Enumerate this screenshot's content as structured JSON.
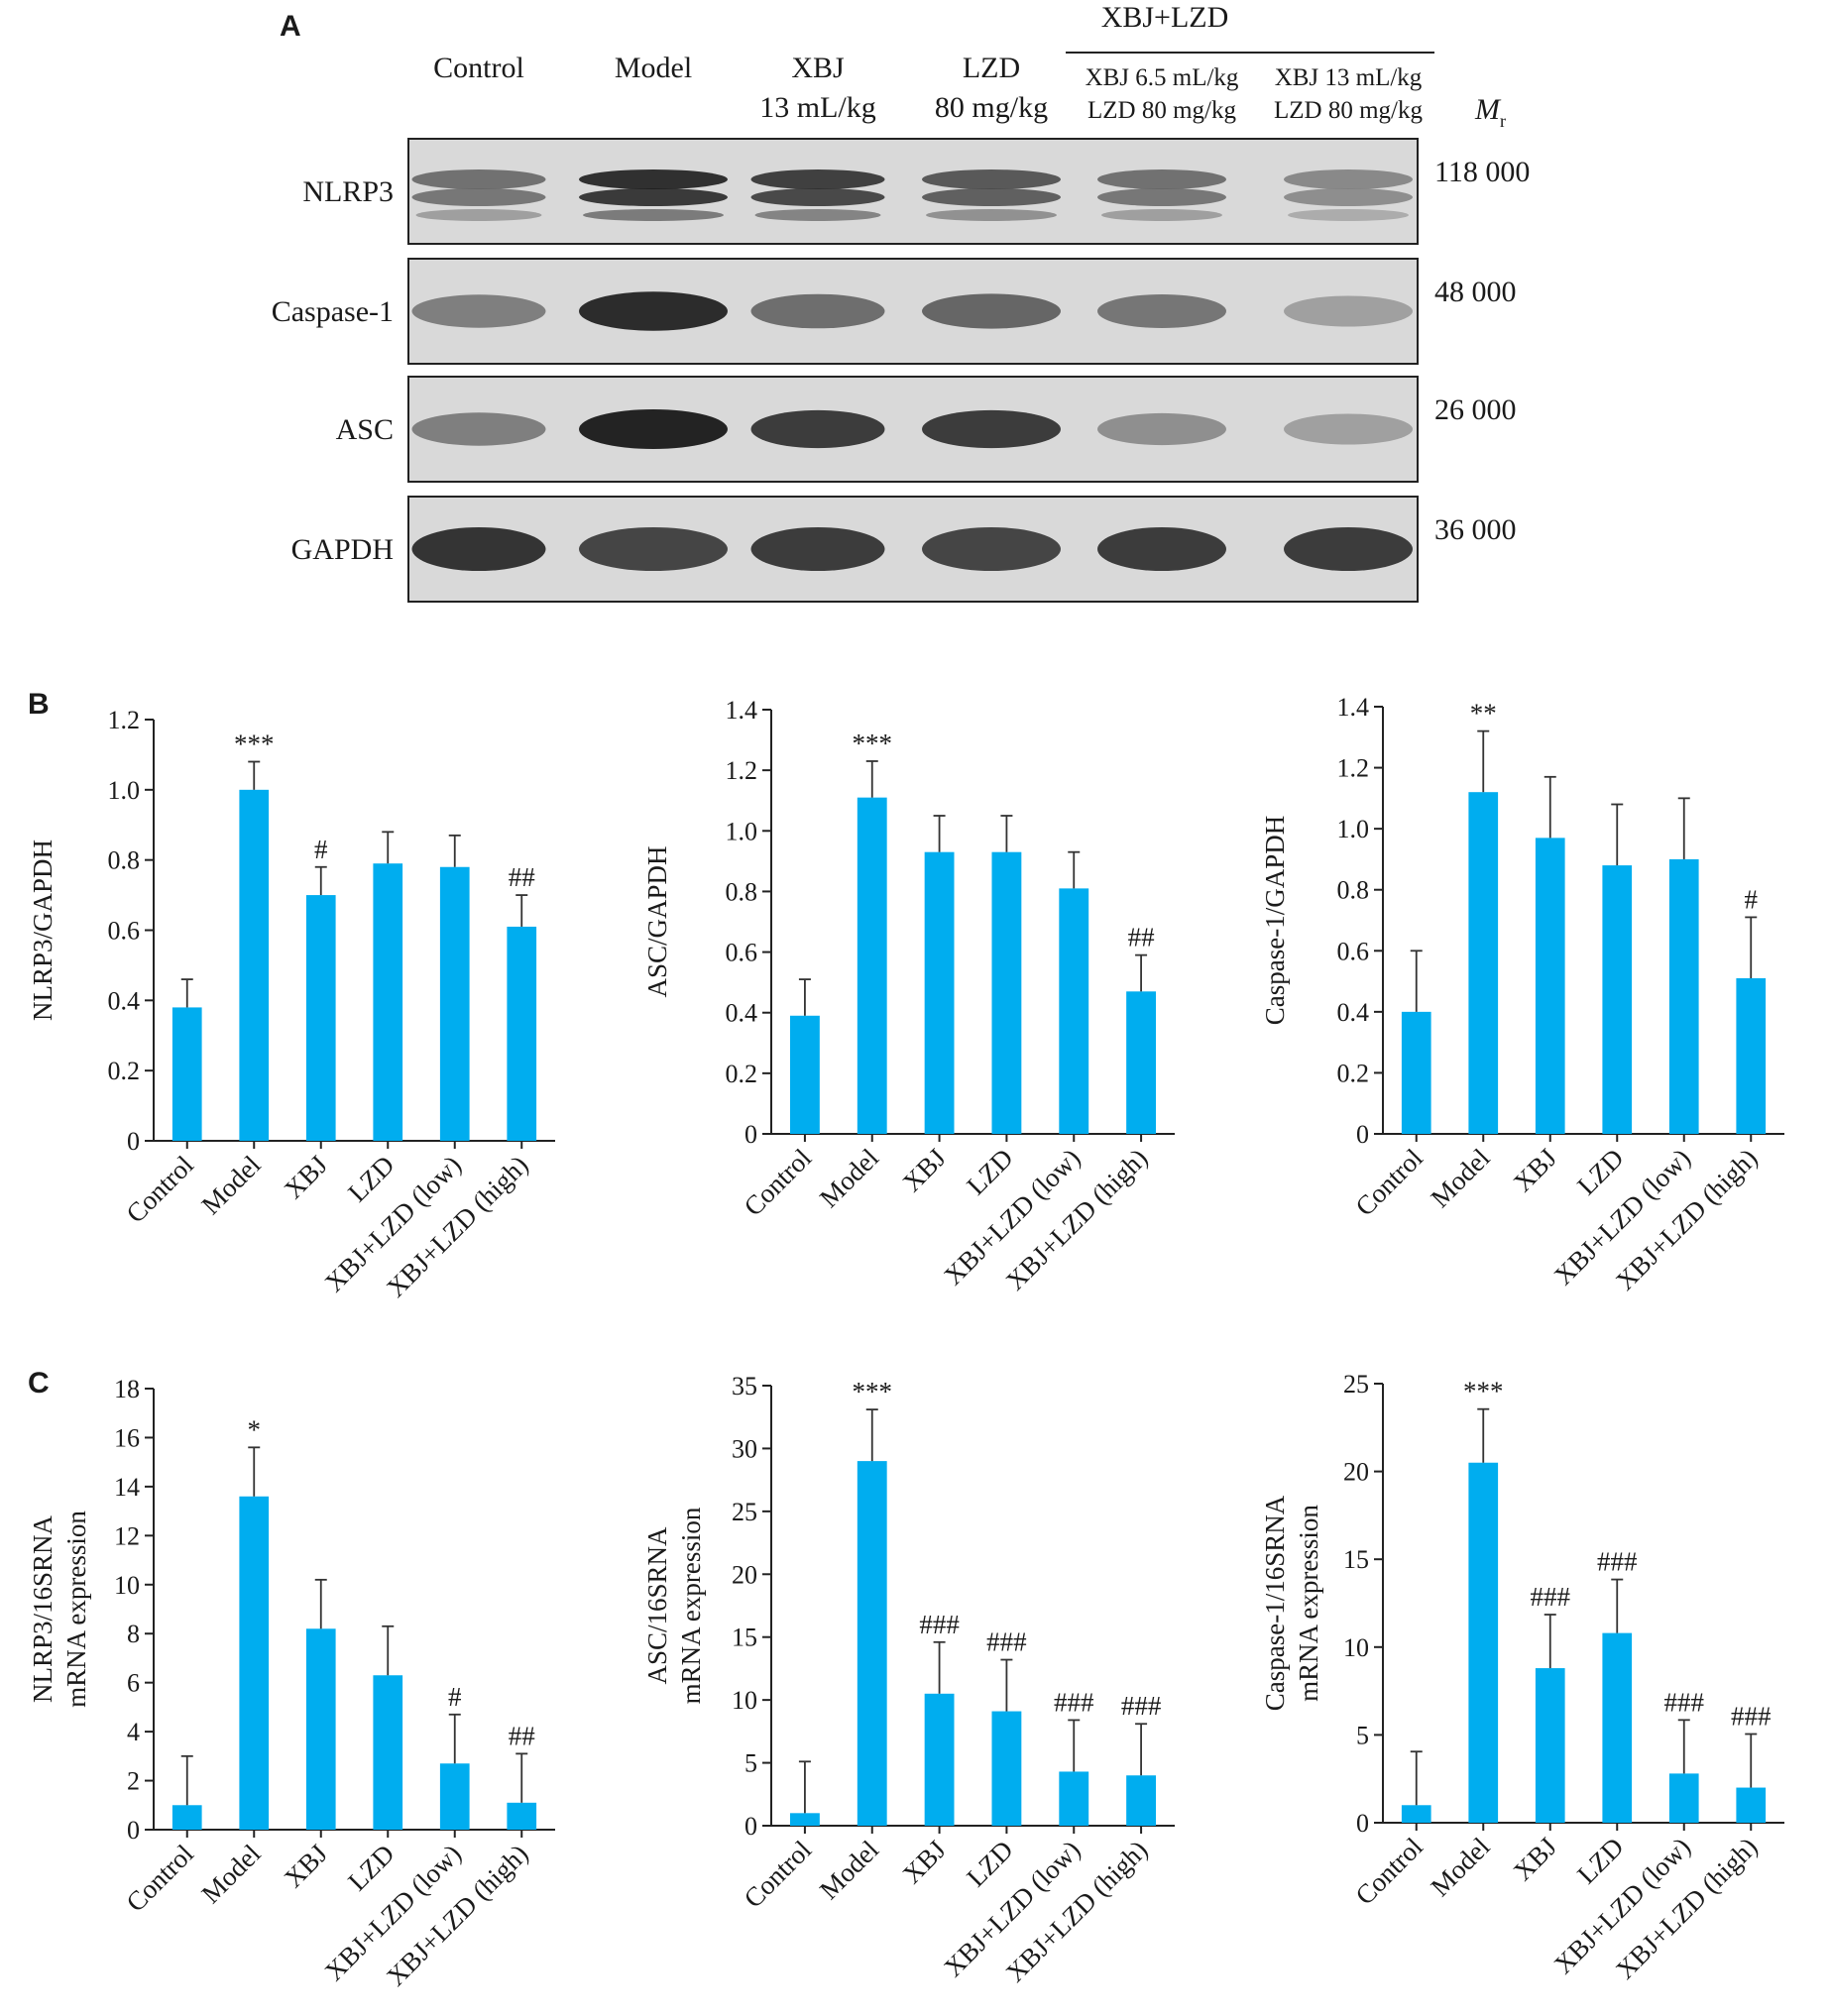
{
  "panel_A": {
    "letter": "A",
    "group_header": "XBJ+LZD",
    "mr_symbol": "M",
    "mr_sub": "r",
    "columns": [
      {
        "line1": "Control",
        "line2": ""
      },
      {
        "line1": "Model",
        "line2": ""
      },
      {
        "line1": "XBJ",
        "line2": "13 mL/kg"
      },
      {
        "line1": "LZD",
        "line2": "80 mg/kg"
      },
      {
        "line1": "XBJ 6.5 mL/kg",
        "line2": "LZD 80 mg/kg"
      },
      {
        "line1": "XBJ 13 mL/kg",
        "line2": "LZD 80 mg/kg"
      }
    ],
    "blots": [
      {
        "protein": "NLRP3",
        "mr": "118 000",
        "intensity": [
          0.55,
          0.95,
          0.85,
          0.7,
          0.55,
          0.4
        ]
      },
      {
        "protein": "Caspase-1",
        "mr": "48 000",
        "intensity": [
          0.45,
          0.95,
          0.55,
          0.6,
          0.5,
          0.25
        ]
      },
      {
        "protein": "ASC",
        "mr": "26 000",
        "intensity": [
          0.45,
          1.0,
          0.85,
          0.85,
          0.35,
          0.25
        ]
      },
      {
        "protein": "GAPDH",
        "mr": "36 000",
        "intensity": [
          0.9,
          0.8,
          0.85,
          0.8,
          0.85,
          0.85
        ]
      }
    ]
  },
  "panel_B": {
    "letter": "B"
  },
  "panel_C": {
    "letter": "C"
  },
  "chart_data": [
    {
      "type": "bar",
      "panel": "B",
      "categories": [
        "Control",
        "Model",
        "XBJ",
        "LZD",
        "XBJ+LZD (low)",
        "XBJ+LZD (high)"
      ],
      "values": [
        0.38,
        1.0,
        0.7,
        0.79,
        0.78,
        0.61
      ],
      "errors": [
        0.08,
        0.08,
        0.08,
        0.09,
        0.09,
        0.09
      ],
      "annotations": [
        "",
        "***",
        "#",
        "",
        "",
        "##"
      ],
      "ylabel_lines": [
        "NLRP3/GAPDH"
      ],
      "ylim": [
        0,
        1.2
      ],
      "yticks": [
        0,
        0.2,
        0.4,
        0.6,
        0.8,
        1.0,
        1.2
      ],
      "ytick_labels": [
        "0",
        "0.2",
        "0.4",
        "0.6",
        "0.8",
        "1.0",
        "1.2"
      ],
      "color": "#00adef"
    },
    {
      "type": "bar",
      "panel": "B",
      "categories": [
        "Control",
        "Model",
        "XBJ",
        "LZD",
        "XBJ+LZD (low)",
        "XBJ+LZD (high)"
      ],
      "values": [
        0.39,
        1.11,
        0.93,
        0.93,
        0.81,
        0.47
      ],
      "errors": [
        0.12,
        0.12,
        0.12,
        0.12,
        0.12,
        0.12
      ],
      "annotations": [
        "",
        "***",
        "",
        "",
        "",
        "##"
      ],
      "ylabel_lines": [
        "ASC/GAPDH"
      ],
      "ylim": [
        0,
        1.4
      ],
      "yticks": [
        0,
        0.2,
        0.4,
        0.6,
        0.8,
        1.0,
        1.2,
        1.4
      ],
      "ytick_labels": [
        "0",
        "0.2",
        "0.4",
        "0.6",
        "0.8",
        "1.0",
        "1.2",
        "1.4"
      ],
      "color": "#00adef"
    },
    {
      "type": "bar",
      "panel": "B",
      "categories": [
        "Control",
        "Model",
        "XBJ",
        "LZD",
        "XBJ+LZD (low)",
        "XBJ+LZD (high)"
      ],
      "values": [
        0.4,
        1.12,
        0.97,
        0.88,
        0.9,
        0.51
      ],
      "errors": [
        0.2,
        0.2,
        0.2,
        0.2,
        0.2,
        0.2
      ],
      "annotations": [
        "",
        "**",
        "",
        "",
        "",
        "#"
      ],
      "ylabel_lines": [
        "Caspase-1/GAPDH"
      ],
      "ylim": [
        0,
        1.4
      ],
      "yticks": [
        0,
        0.2,
        0.4,
        0.6,
        0.8,
        1.0,
        1.2,
        1.4
      ],
      "ytick_labels": [
        "0",
        "0.2",
        "0.4",
        "0.6",
        "0.8",
        "1.0",
        "1.2",
        "1.4"
      ],
      "color": "#00adef"
    },
    {
      "type": "bar",
      "panel": "C",
      "categories": [
        "Control",
        "Model",
        "XBJ",
        "LZD",
        "XBJ+LZD (low)",
        "XBJ+LZD (high)"
      ],
      "values": [
        1.0,
        13.6,
        8.2,
        6.3,
        2.7,
        1.1
      ],
      "errors": [
        2.0,
        2.0,
        2.0,
        2.0,
        2.0,
        2.0
      ],
      "annotations": [
        "",
        "*",
        "",
        "",
        "#",
        "##"
      ],
      "ylabel_lines": [
        "NLRP3/16SRNA",
        "mRNA expression"
      ],
      "ylim": [
        0,
        18
      ],
      "yticks": [
        0,
        2,
        4,
        6,
        8,
        10,
        12,
        14,
        16,
        18
      ],
      "ytick_labels": [
        "0",
        "2",
        "4",
        "6",
        "8",
        "10",
        "12",
        "14",
        "16",
        "18"
      ],
      "color": "#00adef"
    },
    {
      "type": "bar",
      "panel": "C",
      "categories": [
        "Control",
        "Model",
        "XBJ",
        "LZD",
        "XBJ+LZD (low)",
        "XBJ+LZD (high)"
      ],
      "values": [
        1.0,
        29.0,
        10.5,
        9.1,
        4.3,
        4.0
      ],
      "errors": [
        4.1,
        4.1,
        4.1,
        4.1,
        4.1,
        4.1
      ],
      "annotations": [
        "",
        "***",
        "###",
        "###",
        "###",
        "###"
      ],
      "ylabel_lines": [
        "ASC/16SRNA",
        "mRNA expression"
      ],
      "ylim": [
        0,
        35
      ],
      "yticks": [
        0,
        5,
        10,
        15,
        20,
        25,
        30,
        35
      ],
      "ytick_labels": [
        "0",
        "5",
        "10",
        "15",
        "20",
        "25",
        "30",
        "35"
      ],
      "color": "#00adef"
    },
    {
      "type": "bar",
      "panel": "C",
      "categories": [
        "Control",
        "Model",
        "XBJ",
        "LZD",
        "XBJ+LZD (low)",
        "XBJ+LZD (high)"
      ],
      "values": [
        1.0,
        20.5,
        8.8,
        10.8,
        2.8,
        2.0
      ],
      "errors": [
        3.05,
        3.05,
        3.05,
        3.05,
        3.05,
        3.05
      ],
      "annotations": [
        "",
        "***",
        "###",
        "###",
        "###",
        "###"
      ],
      "ylabel_lines": [
        "Caspase-1/16SRNA",
        "mRNA expression"
      ],
      "ylim": [
        0,
        25
      ],
      "yticks": [
        0,
        5,
        10,
        15,
        20,
        25
      ],
      "ytick_labels": [
        "0",
        "5",
        "10",
        "15",
        "20",
        "25"
      ],
      "color": "#00adef"
    }
  ]
}
